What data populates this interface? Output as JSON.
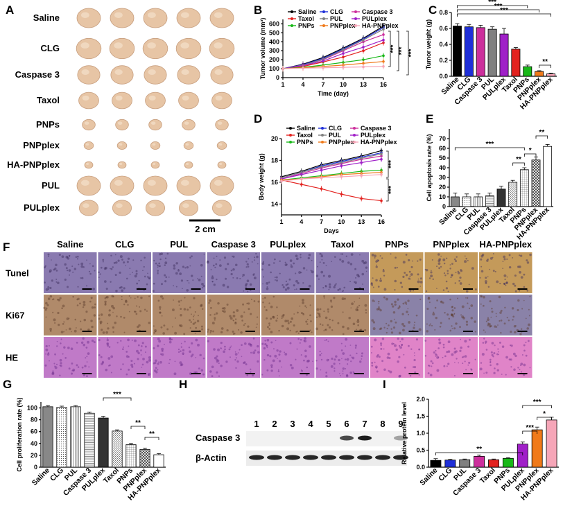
{
  "panels": {
    "A": "A",
    "B": "B",
    "C": "C",
    "D": "D",
    "E": "E",
    "F": "F",
    "G": "G",
    "H": "H",
    "I": "I"
  },
  "colors": {
    "Saline": "#000000",
    "CLG": "#1f2fd8",
    "Caspase 3": "#cc2f9c",
    "Taxol": "#e3221f",
    "PUL": "#808080",
    "PULplex": "#a020c8",
    "PNPs": "#18b818",
    "PNPplex": "#f07a1a",
    "HA-PNPplex": "#f6a6b8",
    "tumor": "#e7c5a5",
    "tissue_tunel_blue": "#8a7ab0",
    "tissue_tunel_brown": "#c49a5a",
    "tissue_ki67": "#b08a6a",
    "tissue_ki67_blue": "#8a82a8",
    "tissue_he": "#c07ac8",
    "tissue_he_pink": "#e084c8"
  },
  "panelA": {
    "groups": [
      "Saline",
      "CLG",
      "Caspase 3",
      "Taxol",
      "PNPs",
      "PNPplex",
      "HA-PNPplex",
      "PUL",
      "PULplex"
    ],
    "scale_label": "2 cm"
  },
  "panelF": {
    "columns": [
      "Saline",
      "CLG",
      "PUL",
      "Caspase 3",
      "PULplex",
      "Taxol",
      "PNPs",
      "PNPplex",
      "HA-PNPplex"
    ],
    "rows": [
      "Tunel",
      "Ki67",
      "HE"
    ]
  },
  "panelH": {
    "lanes": [
      "1",
      "2",
      "3",
      "4",
      "5",
      "6",
      "7",
      "8",
      "9"
    ],
    "rows": [
      "Caspase 3",
      "β-Actin"
    ]
  },
  "chart_data": [
    {
      "id": "B",
      "type": "line",
      "title": "",
      "xlabel": "Time (day)",
      "ylabel": "Tumor volume (mm³)",
      "x": [
        1,
        4,
        7,
        10,
        13,
        16
      ],
      "xticks": [
        "1",
        "4",
        "7",
        "10",
        "13",
        "16"
      ],
      "ylim": [
        0,
        650
      ],
      "yticks": [
        "0",
        "100",
        "200",
        "300",
        "400",
        "500",
        "600"
      ],
      "series": [
        {
          "name": "Saline",
          "values": [
            100,
            150,
            225,
            330,
            440,
            575
          ]
        },
        {
          "name": "CLG",
          "values": [
            100,
            145,
            215,
            320,
            430,
            560
          ]
        },
        {
          "name": "Caspase 3",
          "values": [
            100,
            140,
            200,
            300,
            400,
            480
          ]
        },
        {
          "name": "Taxol",
          "values": [
            100,
            125,
            175,
            230,
            300,
            390
          ]
        },
        {
          "name": "PUL",
          "values": [
            100,
            140,
            205,
            310,
            420,
            540
          ]
        },
        {
          "name": "PULplex",
          "values": [
            100,
            135,
            185,
            270,
            340,
            420
          ]
        },
        {
          "name": "PNPs",
          "values": [
            100,
            115,
            140,
            170,
            200,
            245
          ]
        },
        {
          "name": "PNPplex",
          "values": [
            100,
            110,
            125,
            140,
            160,
            180
          ]
        },
        {
          "name": "HA-PNPplex",
          "values": [
            100,
            105,
            110,
            115,
            120,
            125
          ]
        }
      ],
      "annotations": [
        "***",
        "***",
        "***"
      ]
    },
    {
      "id": "C",
      "type": "bar",
      "xlabel": "",
      "ylabel": "Tumor weight (g)",
      "categories": [
        "Saline",
        "CLG",
        "Caspase 3",
        "PUL",
        "PULplex",
        "Taxol",
        "PNPs",
        "PNPplex",
        "HA-PNPplex"
      ],
      "values": [
        0.63,
        0.62,
        0.61,
        0.59,
        0.53,
        0.34,
        0.12,
        0.06,
        0.03
      ],
      "errors": [
        0.03,
        0.03,
        0.03,
        0.03,
        0.07,
        0.02,
        0.02,
        0.01,
        0.01
      ],
      "ylim": [
        0,
        0.8
      ],
      "yticks": [
        "0.0",
        "0.2",
        "0.4",
        "0.6",
        "0.8"
      ],
      "annotations": [
        "***",
        "***",
        "***",
        "**"
      ]
    },
    {
      "id": "D",
      "type": "line",
      "xlabel": "Days",
      "ylabel": "Body weight (g)",
      "x": [
        1,
        4,
        7,
        10,
        13,
        16
      ],
      "xticks": [
        "1",
        "4",
        "7",
        "10",
        "13",
        "16"
      ],
      "ylim": [
        13,
        20
      ],
      "yticks": [
        "14",
        "16",
        "18",
        "20"
      ],
      "series": [
        {
          "name": "Saline",
          "values": [
            16.5,
            17.0,
            17.6,
            18.0,
            18.4,
            18.9
          ]
        },
        {
          "name": "CLG",
          "values": [
            16.4,
            16.9,
            17.5,
            17.9,
            18.3,
            18.7
          ]
        },
        {
          "name": "Caspase 3",
          "values": [
            16.3,
            16.8,
            17.3,
            17.7,
            18.1,
            18.4
          ]
        },
        {
          "name": "Taxol",
          "values": [
            16.2,
            15.8,
            15.4,
            14.9,
            14.5,
            14.3
          ]
        },
        {
          "name": "PUL",
          "values": [
            16.4,
            16.9,
            17.4,
            17.8,
            18.2,
            18.6
          ]
        },
        {
          "name": "PULplex",
          "values": [
            16.3,
            16.7,
            17.1,
            17.5,
            17.8,
            18.1
          ]
        },
        {
          "name": "PNPs",
          "values": [
            16.2,
            16.4,
            16.6,
            16.8,
            17.0,
            17.1
          ]
        },
        {
          "name": "PNPplex",
          "values": [
            16.2,
            16.3,
            16.5,
            16.7,
            16.8,
            16.9
          ]
        },
        {
          "name": "HA-PNPplex",
          "values": [
            16.1,
            16.3,
            16.4,
            16.5,
            16.6,
            16.7
          ]
        }
      ],
      "annotations": [
        "***",
        "***"
      ]
    },
    {
      "id": "E",
      "type": "bar",
      "xlabel": "",
      "ylabel": "Cell apoptosis rate (%)",
      "categories": [
        "Saline",
        "CLG",
        "PUL",
        "Caspase 3",
        "PULplex",
        "Taxol",
        "PNPs",
        "PNPplex",
        "HA-PNPplex"
      ],
      "values": [
        10,
        10,
        10,
        11,
        18,
        25,
        38,
        48,
        62
      ],
      "errors": [
        4,
        3,
        3,
        3,
        3,
        2,
        2,
        3,
        2
      ],
      "ylim": [
        0,
        80
      ],
      "yticks": [
        "0",
        "10",
        "20",
        "30",
        "40",
        "50",
        "60",
        "70"
      ],
      "annotations": [
        "***",
        "**",
        "*",
        "**"
      ]
    },
    {
      "id": "G",
      "type": "bar",
      "xlabel": "",
      "ylabel": "Cell proliferation rate (%)",
      "categories": [
        "Saline",
        "CLG",
        "PUL",
        "Caspase 3",
        "PULplex",
        "Taxol",
        "PNPs",
        "PNPplex",
        "HA-PNPplex"
      ],
      "values": [
        102,
        101,
        102,
        91,
        83,
        61,
        38,
        30,
        21
      ],
      "errors": [
        2,
        2,
        2,
        2,
        3,
        2,
        2,
        2,
        2
      ],
      "ylim": [
        0,
        110
      ],
      "yticks": [
        "0",
        "20",
        "40",
        "60",
        "80",
        "100"
      ],
      "annotations": [
        "***",
        "**",
        "**"
      ]
    },
    {
      "id": "I",
      "type": "bar",
      "xlabel": "",
      "ylabel": "Relative protein level",
      "categories": [
        "Saline",
        "CLG",
        "PUL",
        "Caspase 3",
        "Taxol",
        "PNPs",
        "PULplex",
        "PNPplex",
        "HA-PNPplex"
      ],
      "values": [
        0.2,
        0.21,
        0.22,
        0.32,
        0.22,
        0.26,
        0.68,
        1.1,
        1.39
      ],
      "errors": [
        0.05,
        0.02,
        0.02,
        0.04,
        0.02,
        0.02,
        0.06,
        0.08,
        0.08
      ],
      "ylim": [
        0,
        2.0
      ],
      "yticks": [
        "0.0",
        "0.5",
        "1.0",
        "1.5",
        "2.0"
      ],
      "annotations": [
        "**",
        "***",
        "*",
        "***"
      ]
    }
  ]
}
